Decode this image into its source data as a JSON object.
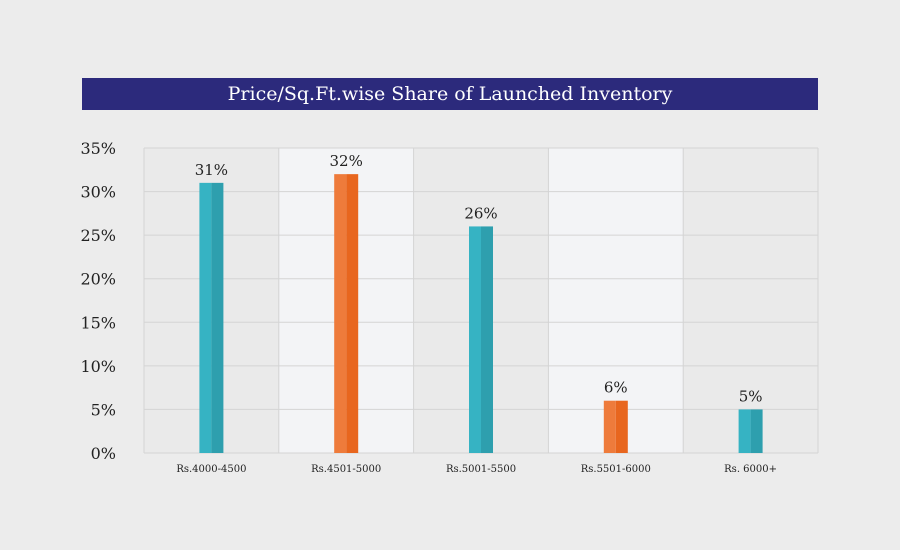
{
  "chart_data": {
    "type": "bar",
    "title": "Price/Sq.Ft.wise Share of Launched Inventory",
    "xlabel": "",
    "ylabel": "",
    "categories": [
      "Rs.4000-4500",
      "Rs.4501-5000",
      "Rs.5001-5500",
      "Rs.5501-6000",
      "Rs. 6000+"
    ],
    "values": [
      31,
      32,
      26,
      6,
      5
    ],
    "data_labels": [
      "31%",
      "32%",
      "26%",
      "6%",
      "5%"
    ],
    "ylim": [
      0,
      35
    ],
    "y_ticks": [
      0,
      5,
      10,
      15,
      20,
      25,
      30,
      35
    ],
    "y_tick_labels": [
      "0%",
      "5%",
      "10%",
      "15%",
      "20%",
      "25%",
      "30%",
      "35%"
    ],
    "grid": true,
    "legend": "none",
    "colors": {
      "teal": "#36b3c3",
      "teal_dark": "#2e9fae",
      "orange": "#ee7b3b",
      "orange_dark": "#e8661e",
      "title_bg": "#2c2a7c",
      "band_light": "#f3f4f6",
      "band_dark": "#eaeaea"
    },
    "bar_color_keys": [
      "teal",
      "orange",
      "teal",
      "orange",
      "teal"
    ]
  }
}
